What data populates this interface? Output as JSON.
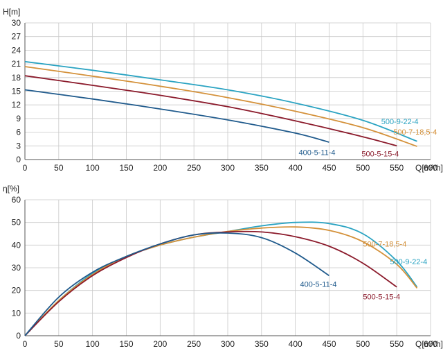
{
  "chart_data": [
    {
      "type": "line",
      "ylabel": "H[m]",
      "xlabel": "Q[m³/h]",
      "xlim": [
        0,
        600
      ],
      "ylim": [
        0,
        30
      ],
      "xticks": [
        0,
        50,
        100,
        150,
        200,
        250,
        300,
        350,
        400,
        450,
        500,
        550,
        600
      ],
      "yticks": [
        0,
        3,
        6,
        9,
        12,
        15,
        18,
        21,
        24,
        27,
        30
      ],
      "grid": true,
      "series": [
        {
          "name": "500-9-22-4",
          "color": "#2aa3c2",
          "x": [
            0,
            100,
            200,
            300,
            400,
            500,
            580
          ],
          "y": [
            21.5,
            19.6,
            17.5,
            15.3,
            12.4,
            8.6,
            4.0
          ]
        },
        {
          "name": "500-7-18,5-4",
          "color": "#d4913a",
          "x": [
            0,
            100,
            200,
            300,
            400,
            500,
            580
          ],
          "y": [
            20.4,
            18.3,
            16.1,
            13.6,
            10.6,
            7.0,
            2.9
          ]
        },
        {
          "name": "500-5-15-4",
          "color": "#8b1a2b",
          "x": [
            0,
            100,
            200,
            300,
            400,
            500,
            550
          ],
          "y": [
            18.4,
            16.3,
            14.1,
            11.6,
            8.5,
            5.0,
            3.0
          ]
        },
        {
          "name": "400-5-11-4",
          "color": "#1f5a8c",
          "x": [
            0,
            100,
            200,
            300,
            400,
            450
          ],
          "y": [
            15.3,
            13.3,
            11.1,
            8.7,
            5.8,
            3.8
          ]
        }
      ]
    },
    {
      "type": "line",
      "ylabel": "η[%]",
      "xlabel": "Q[m³/h]",
      "xlim": [
        0,
        600
      ],
      "ylim": [
        0,
        60
      ],
      "xticks": [
        0,
        50,
        100,
        150,
        200,
        250,
        300,
        350,
        400,
        450,
        500,
        550,
        600
      ],
      "yticks": [
        0,
        10,
        20,
        30,
        40,
        50,
        60
      ],
      "grid": true,
      "series": [
        {
          "name": "500-9-22-4",
          "color": "#2aa3c2",
          "x": [
            0,
            50,
            100,
            150,
            200,
            250,
            300,
            350,
            400,
            450,
            500,
            550,
            580
          ],
          "y": [
            0,
            15.5,
            27.5,
            35,
            40,
            43.5,
            46,
            48.5,
            50,
            49.5,
            45,
            33,
            21.5
          ]
        },
        {
          "name": "500-7-18,5-4",
          "color": "#d4913a",
          "x": [
            0,
            50,
            100,
            150,
            200,
            250,
            300,
            350,
            400,
            450,
            500,
            550,
            580
          ],
          "y": [
            0,
            15.5,
            27,
            35,
            40,
            43.5,
            46,
            47.5,
            48,
            46.5,
            41.5,
            31.5,
            21
          ]
        },
        {
          "name": "500-5-15-4",
          "color": "#8b1a2b",
          "x": [
            0,
            50,
            100,
            150,
            200,
            250,
            300,
            350,
            400,
            450,
            500,
            550
          ],
          "y": [
            0,
            15,
            26.5,
            34.5,
            40.5,
            44.5,
            45.8,
            45.8,
            43.7,
            39.5,
            32,
            21.5
          ]
        },
        {
          "name": "400-5-11-4",
          "color": "#1f5a8c",
          "x": [
            0,
            50,
            100,
            150,
            200,
            250,
            300,
            350,
            400,
            450
          ],
          "y": [
            0,
            17,
            28,
            35,
            40.5,
            44.5,
            45.3,
            43.3,
            36.5,
            26.5
          ]
        }
      ]
    }
  ],
  "labels": {
    "top": [
      {
        "text": "500-9-22-4",
        "color": "#2aa3c2",
        "x": 527,
        "y": 8.4
      },
      {
        "text": "500-7-18,5-4",
        "color": "#d4913a",
        "x": 545,
        "y": 6.1
      },
      {
        "text": "500-5-15-4",
        "color": "#8b1a2b",
        "x": 498,
        "y": 1.3
      },
      {
        "text": "400-5-11-4",
        "color": "#1f5a8c",
        "x": 405,
        "y": 1.6
      }
    ],
    "bottom": [
      {
        "text": "500-7-18,5-4",
        "color": "#d4913a",
        "x": 500,
        "y": 40.5
      },
      {
        "text": "500-9-22-4",
        "color": "#2aa3c2",
        "x": 540,
        "y": 32.8
      },
      {
        "text": "400-5-11-4",
        "color": "#1f5a8c",
        "x": 407,
        "y": 22.8
      },
      {
        "text": "500-5-15-4",
        "color": "#8b1a2b",
        "x": 500,
        "y": 17.3
      }
    ]
  }
}
